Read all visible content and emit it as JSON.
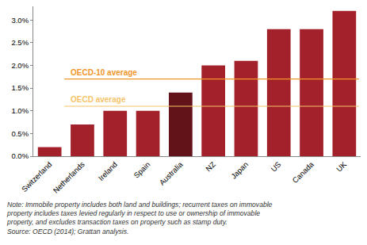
{
  "chart_data": {
    "type": "bar",
    "categories": [
      "Switzerland",
      "Netherlands",
      "Ireland",
      "Spain",
      "Australia",
      "NZ",
      "Japan",
      "US",
      "Canada",
      "UK"
    ],
    "values": [
      0.2,
      0.7,
      1.0,
      1.0,
      1.4,
      2.0,
      2.1,
      2.8,
      2.8,
      3.2
    ],
    "colors": [
      "#a3212a",
      "#a3212a",
      "#a3212a",
      "#a3212a",
      "#621219",
      "#a3212a",
      "#a3212a",
      "#a3212a",
      "#a3212a",
      "#a3212a"
    ],
    "ylim": [
      0,
      3.3
    ],
    "yticks": [
      {
        "value": 0,
        "label": "0.0%"
      },
      {
        "value": 0.5,
        "label": "0.5%"
      },
      {
        "value": 1.0,
        "label": "1.0%"
      },
      {
        "value": 1.5,
        "label": "1.5%"
      },
      {
        "value": 2.0,
        "label": "2.0%"
      },
      {
        "value": 2.5,
        "label": "2.5%"
      },
      {
        "value": 3.0,
        "label": "3.0%"
      }
    ],
    "grid": false,
    "reference_lines": [
      {
        "label": "OECD-10 average",
        "value": 1.7,
        "color": "#f0962a"
      },
      {
        "label": "OECD average",
        "value": 1.1,
        "color": "#f5c46a"
      }
    ],
    "note": [
      "Note: Immobile property includes both land and buildings; recurrent taxes on immovable",
      "property includes taxes levied regularly in respect to use or ownership of immovable",
      "property, and excludes transaction taxes on property such as stamp duty.",
      "Source: OECD (2014); Grattan analysis."
    ]
  }
}
